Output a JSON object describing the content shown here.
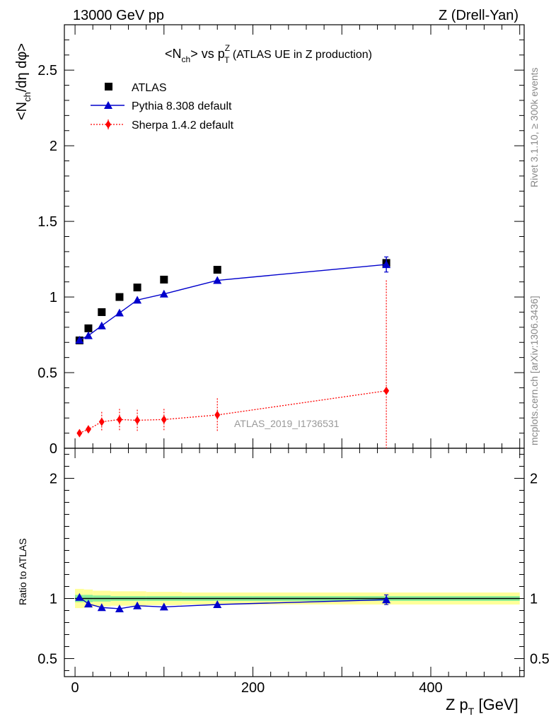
{
  "header": {
    "left": "13000 GeV pp",
    "right": "Z (Drell-Yan)"
  },
  "title": {
    "n": "<N",
    "n_sub": "ch",
    "mid": "> vs p",
    "p_sup": "Z",
    "p_sub": "T",
    "tail": " (ATLAS UE in Z production)"
  },
  "side_labels": {
    "rivet": "Rivet 3.1.10, ≥ 300k events",
    "mcplots": "mcplots.cern.ch [arXiv:1306.3436]"
  },
  "watermark": "ATLAS_2019_I1736531",
  "ylabel_top": {
    "a": "<N",
    "a_sub": "ch",
    "b": "/dη dφ>"
  },
  "ylabel_bottom": "Ratio to ATLAS",
  "xlabel": {
    "a": "Z p",
    "a_sub": "T",
    "b": " [GeV]"
  },
  "legend": {
    "atlas": "ATLAS",
    "pythia": "Pythia 8.308 default",
    "sherpa": "Sherpa 1.4.2 default"
  },
  "colors": {
    "atlas": "#000000",
    "pythia": "#0000cc",
    "sherpa": "#ff0000",
    "band_outer": "#ffff99",
    "band_inner": "#88ee99"
  },
  "chart_data": [
    {
      "type": "scatter",
      "panel": "main",
      "xlim": [
        -12,
        505
      ],
      "ylim": [
        0,
        2.8
      ],
      "yticks": [
        0,
        0.5,
        1,
        1.5,
        2,
        2.5
      ],
      "ytick_labels": [
        "0",
        "0.5",
        "1",
        "1.5",
        "2",
        "2.5"
      ],
      "series": [
        {
          "name": "ATLAS",
          "style": "square",
          "x": [
            5,
            15,
            30,
            50,
            70,
            100,
            160,
            350
          ],
          "y": [
            0.713,
            0.793,
            0.9,
            1.0,
            1.063,
            1.115,
            1.18,
            1.225
          ],
          "err": [
            0.01,
            0.01,
            0.01,
            0.01,
            0.01,
            0.01,
            0.01,
            0.02
          ]
        },
        {
          "name": "Pythia 8.308 default",
          "style": "triangle-line",
          "x": [
            5,
            15,
            30,
            50,
            70,
            100,
            160,
            350
          ],
          "y": [
            0.715,
            0.745,
            0.81,
            0.895,
            0.98,
            1.02,
            1.11,
            1.215
          ],
          "err": [
            0.01,
            0.01,
            0.01,
            0.01,
            0.01,
            0.01,
            0.015,
            0.05
          ]
        },
        {
          "name": "Sherpa 1.4.2 default",
          "style": "diamond-dotted",
          "x": [
            5,
            15,
            30,
            50,
            70,
            100,
            160,
            350
          ],
          "y": [
            0.1,
            0.125,
            0.175,
            0.19,
            0.185,
            0.19,
            0.22,
            0.38
          ],
          "err": [
            0.02,
            0.025,
            0.065,
            0.07,
            0.07,
            0.07,
            0.11,
            0.73
          ]
        }
      ]
    },
    {
      "type": "line",
      "panel": "ratio",
      "xlim": [
        -12,
        505
      ],
      "ylim": [
        0.35,
        2.25
      ],
      "yticks": [
        0.5,
        1,
        2
      ],
      "ytick_labels": [
        "0.5",
        "1",
        "2"
      ],
      "xticks": [
        0,
        200,
        400
      ],
      "xtick_labels": [
        "0",
        "200",
        "400"
      ],
      "reference": 1,
      "band_bins": [
        {
          "x0": 0,
          "x1": 10,
          "inner": 0.03,
          "outer": 0.08
        },
        {
          "x0": 10,
          "x1": 20,
          "inner": 0.03,
          "outer": 0.075
        },
        {
          "x0": 20,
          "x1": 40,
          "inner": 0.025,
          "outer": 0.065
        },
        {
          "x0": 40,
          "x1": 60,
          "inner": 0.02,
          "outer": 0.06
        },
        {
          "x0": 60,
          "x1": 80,
          "inner": 0.02,
          "outer": 0.06
        },
        {
          "x0": 80,
          "x1": 120,
          "inner": 0.02,
          "outer": 0.055
        },
        {
          "x0": 120,
          "x1": 200,
          "inner": 0.02,
          "outer": 0.05
        },
        {
          "x0": 200,
          "x1": 500,
          "inner": 0.02,
          "outer": 0.05
        }
      ],
      "series": [
        {
          "name": "Pythia 8.308 default",
          "x": [
            5,
            15,
            30,
            50,
            70,
            100,
            160,
            350
          ],
          "y": [
            1.01,
            0.955,
            0.925,
            0.915,
            0.94,
            0.93,
            0.95,
            0.99
          ],
          "err": [
            0.01,
            0.01,
            0.01,
            0.01,
            0.01,
            0.01,
            0.012,
            0.04
          ]
        }
      ]
    }
  ]
}
